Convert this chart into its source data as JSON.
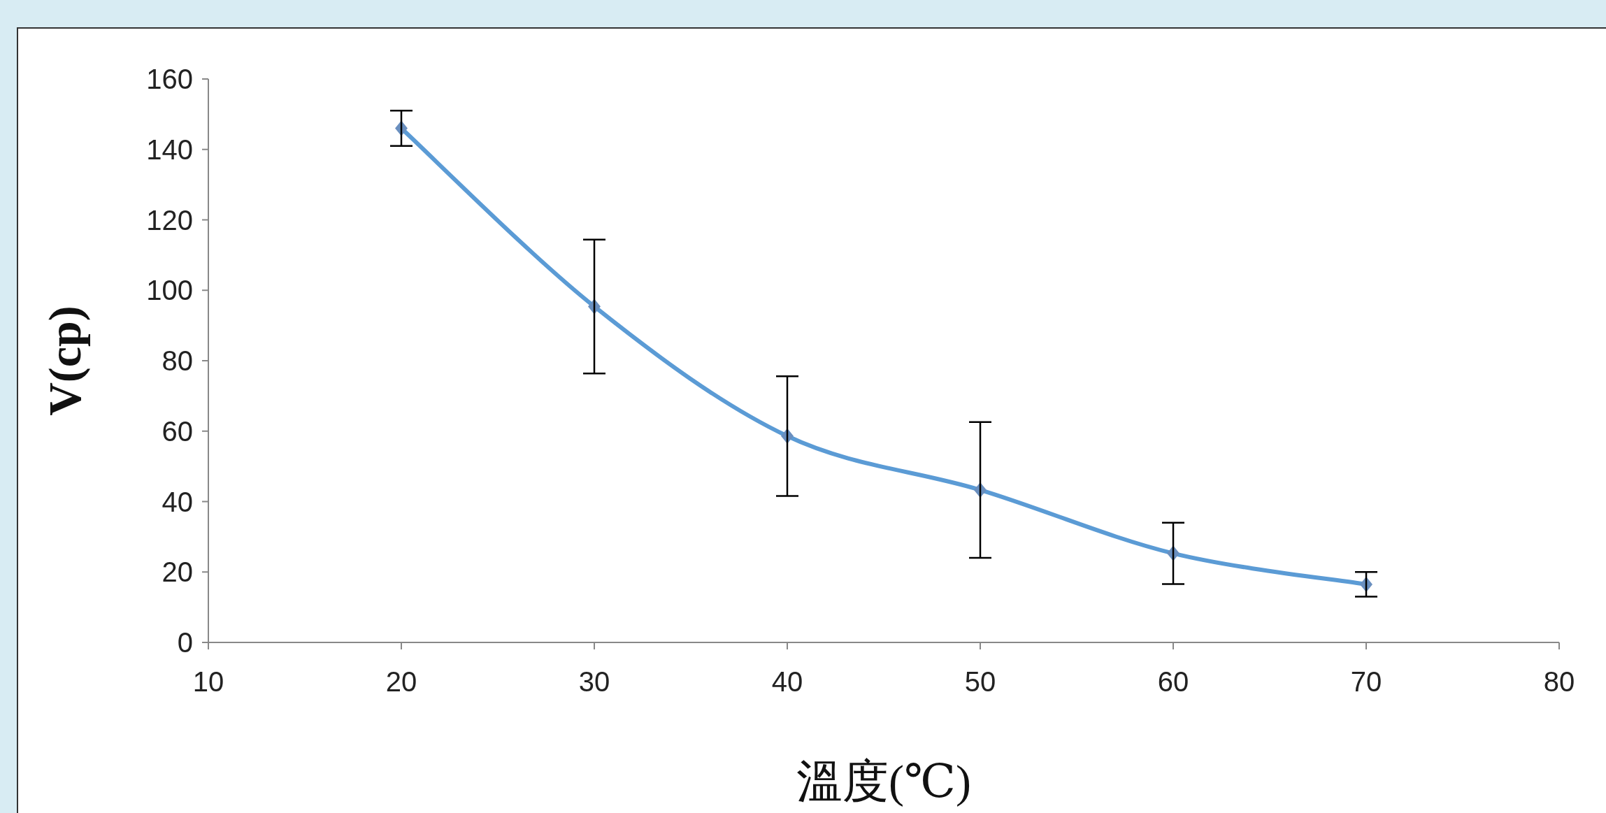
{
  "chart_data": {
    "type": "line",
    "xlabel": "溫度(℃)",
    "ylabel": "V(cp)",
    "x": [
      20,
      30,
      40,
      50,
      60,
      70
    ],
    "series": [
      {
        "color": "#5b9bd5",
        "values": [
          146,
          95.4,
          58.6,
          43.3,
          25.3,
          16.5
        ],
        "errors": [
          5,
          19,
          17,
          19.3,
          8.7,
          3.5
        ]
      }
    ],
    "xlim": [
      10,
      80
    ],
    "xticks": [
      10,
      20,
      30,
      40,
      50,
      60,
      70,
      80
    ],
    "ylim": [
      0,
      160
    ],
    "yticks": [
      0,
      20,
      40,
      60,
      80,
      100,
      120,
      140,
      160
    ],
    "marker": "diamond",
    "line_style": "solid"
  }
}
